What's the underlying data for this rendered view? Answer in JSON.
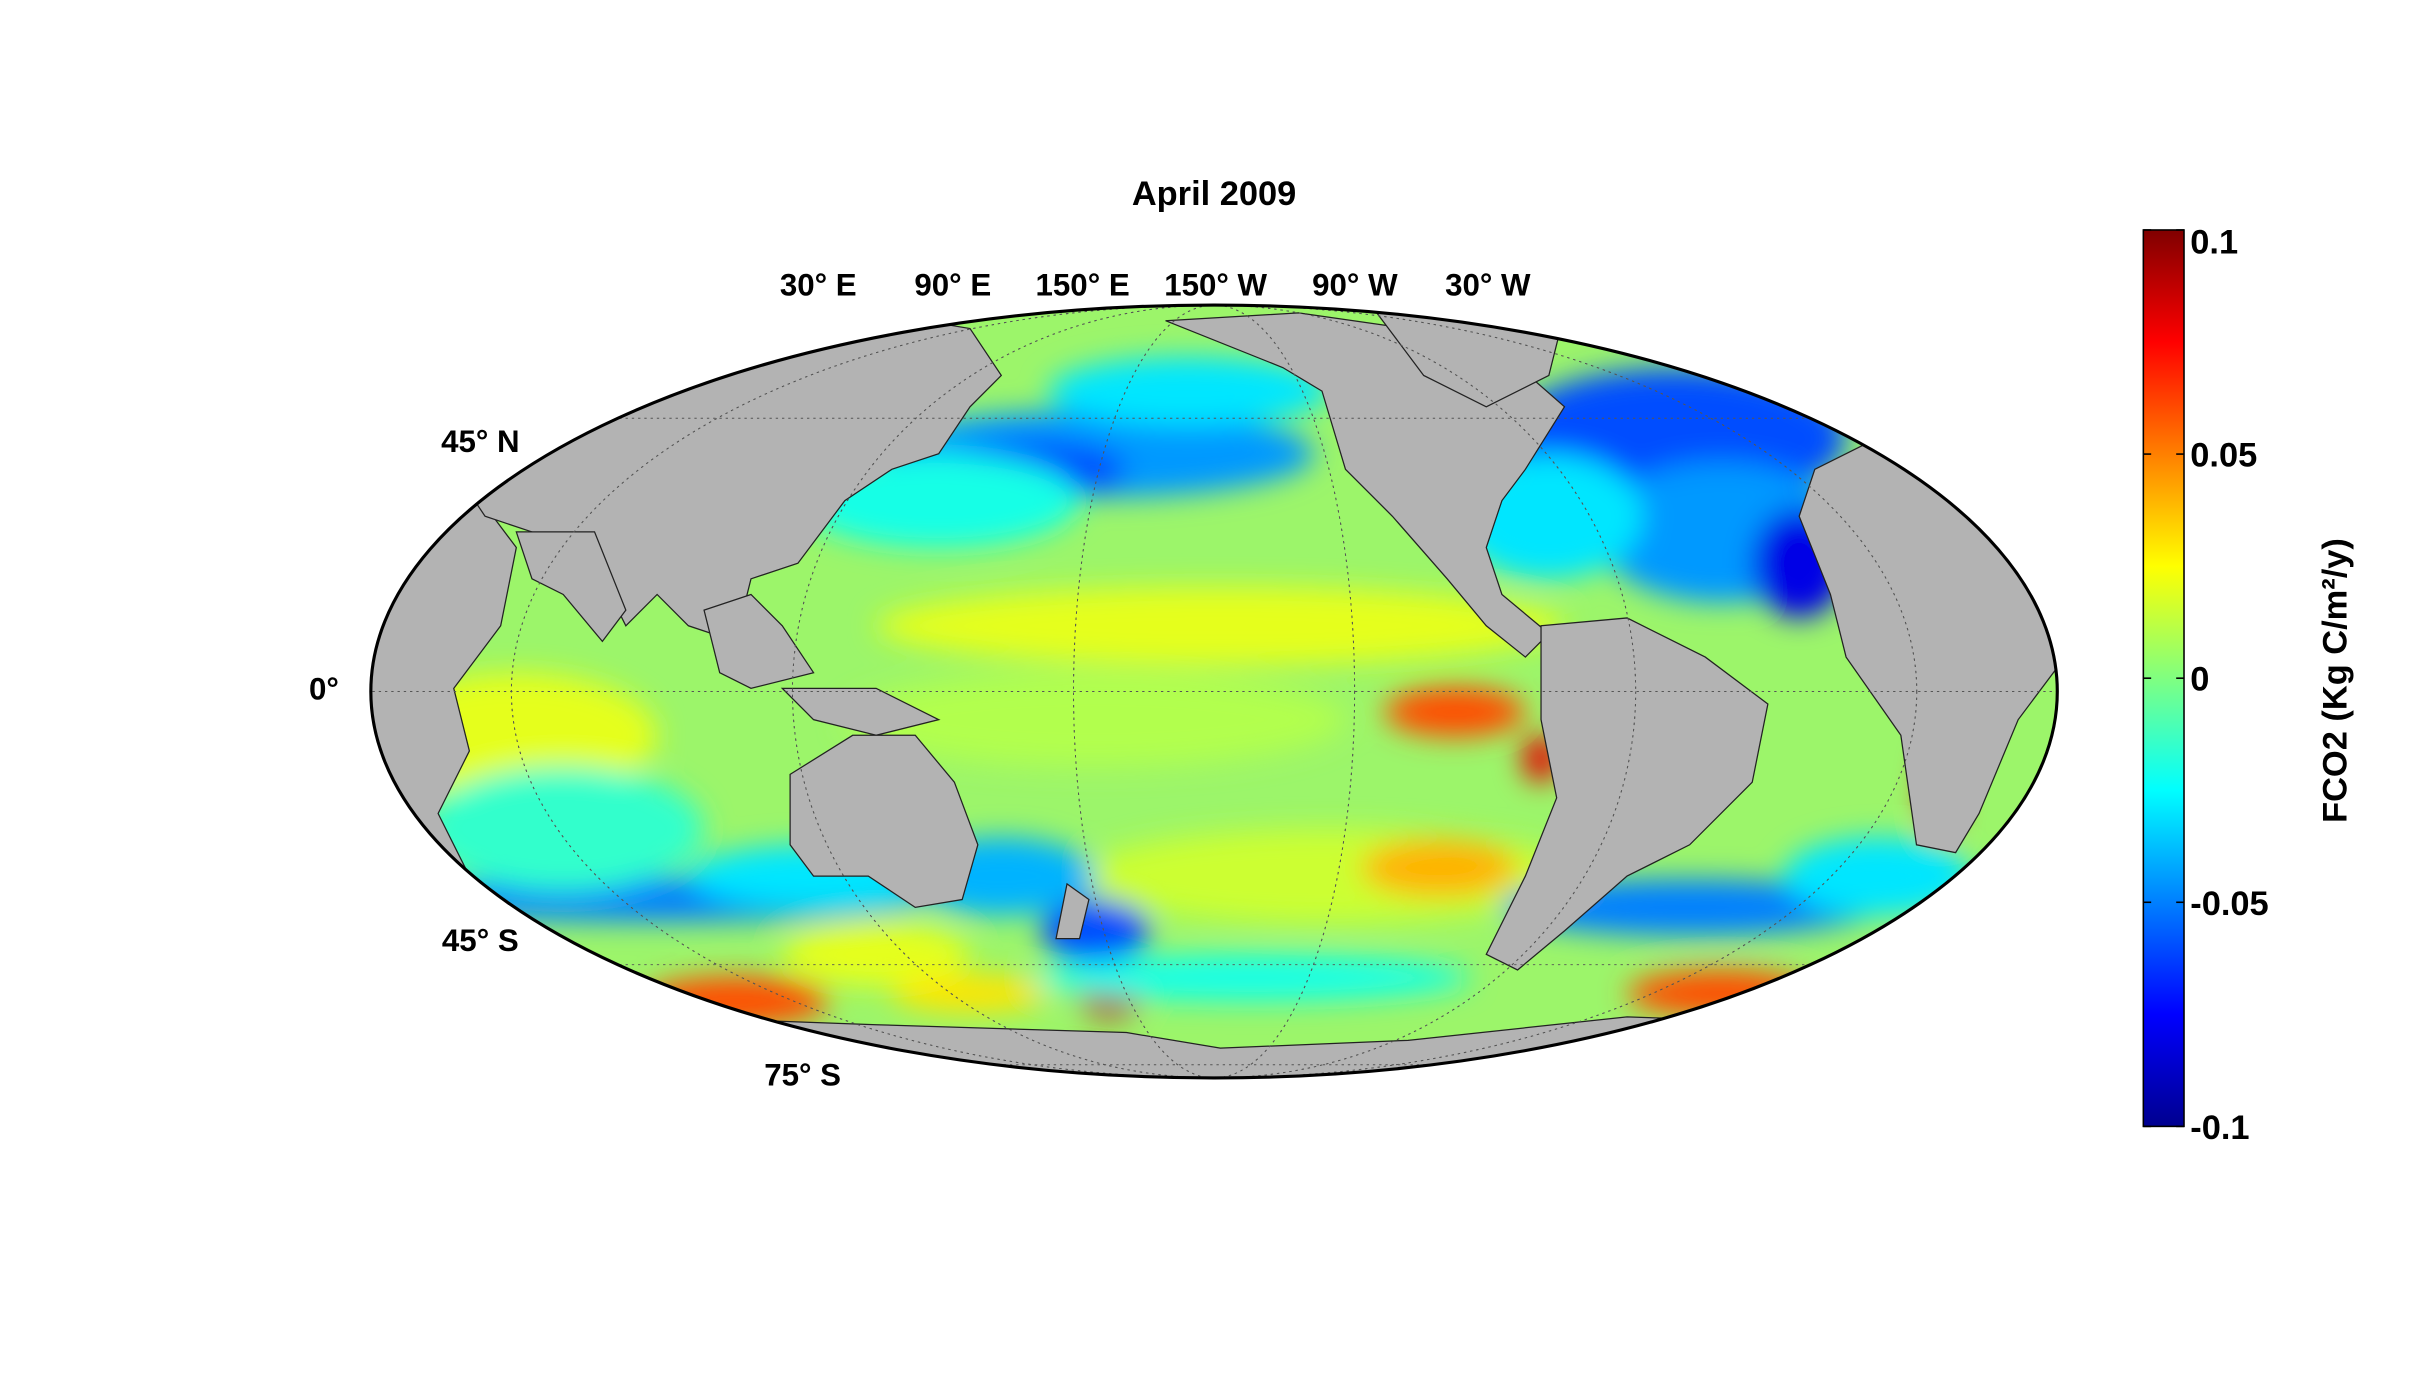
{
  "chart_data": {
    "type": "heatmap",
    "title": "April 2009",
    "projection": "Mollweide, centered on 180°",
    "colormap": "jet",
    "clim": [
      -0.1,
      0.1
    ],
    "colorbar": {
      "label": "FCO2 (Kg C/m²/y)",
      "ticks": [
        0.1,
        0.05,
        0,
        -0.05,
        -0.1
      ],
      "tick_labels": [
        "0.1",
        "0.05",
        "0",
        "-0.05",
        "-0.1"
      ]
    },
    "lon_labels": [
      "30° E",
      "90° E",
      "150° E",
      "150° W",
      "90° W",
      "30° W"
    ],
    "lat_labels": [
      "45° N",
      "0°",
      "45° S",
      "75° S"
    ],
    "grid": true,
    "land_color": "#b3b3b3",
    "no_data_color": "#ffffff"
  }
}
